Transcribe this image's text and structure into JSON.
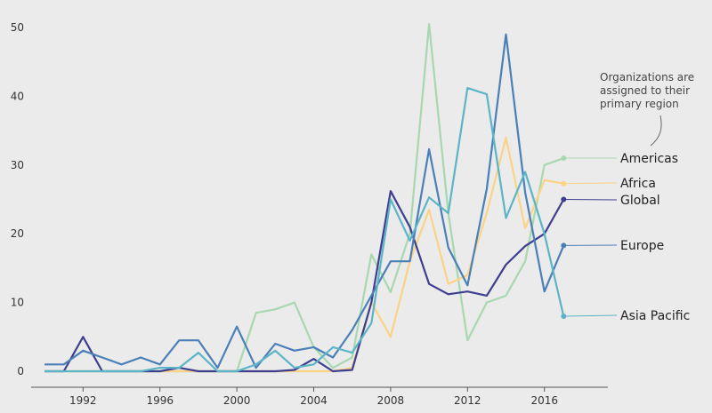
{
  "chart_data": {
    "type": "line",
    "title": "",
    "xlabel": "",
    "ylabel": "",
    "xlim": [
      1989.3,
      2019.3
    ],
    "ylim": [
      0,
      50
    ],
    "x_ticks": [
      1992,
      1996,
      2000,
      2004,
      2008,
      2012,
      2016
    ],
    "y_ticks": [
      0,
      10,
      20,
      30,
      40,
      50
    ],
    "grid": false,
    "legend": "direct labels at right end of lines",
    "annotation": [
      "Organizations are",
      "assigned to their",
      "primary region"
    ],
    "x": [
      1990,
      1991,
      1992,
      1993,
      1994,
      1995,
      1996,
      1997,
      1998,
      1999,
      2000,
      2001,
      2002,
      2003,
      2004,
      2005,
      2006,
      2007,
      2008,
      2009,
      2010,
      2011,
      2012,
      2013,
      2014,
      2015,
      2016,
      2017
    ],
    "series": [
      {
        "name": "Americas",
        "color": "#a8d8b0",
        "values": [
          0,
          0,
          0,
          0,
          0,
          0,
          0,
          0,
          0,
          0,
          0,
          8.5,
          9,
          10,
          3.5,
          0.5,
          2,
          17,
          11.5,
          20,
          50.5,
          23,
          4.5,
          10,
          11,
          16,
          30,
          31
        ]
      },
      {
        "name": "Africa",
        "color": "#fcd385",
        "values": [
          0,
          0,
          0,
          0,
          0,
          0,
          0,
          0,
          0,
          0,
          0,
          0,
          0,
          0,
          0,
          0,
          0.5,
          10,
          5,
          16,
          23.5,
          12.7,
          14,
          23,
          34,
          20.8,
          27.8,
          27.3
        ]
      },
      {
        "name": "Global",
        "color": "#3d3e8f",
        "values": [
          0,
          0,
          5,
          0,
          0,
          0,
          0,
          0.5,
          0,
          0,
          0,
          0,
          0,
          0.2,
          1.8,
          0,
          0.2,
          10,
          26.2,
          21,
          12.7,
          11.2,
          11.6,
          11,
          15.5,
          18.2,
          20,
          25
        ]
      },
      {
        "name": "Europe",
        "color": "#4a7fb8",
        "values": [
          1,
          1,
          3,
          2,
          1,
          2,
          1,
          4.5,
          4.5,
          0.5,
          6.5,
          0.5,
          4,
          3,
          3.5,
          2,
          6,
          11,
          16,
          16,
          32.3,
          18,
          12.5,
          26.5,
          49,
          26,
          11.6,
          18.3
        ]
      },
      {
        "name": "Asia Pacific",
        "color": "#5bb5c6",
        "values": [
          0,
          0,
          0,
          0,
          0,
          0,
          0.5,
          0.5,
          2.7,
          0,
          0,
          1,
          3,
          0.5,
          1,
          3.5,
          2.7,
          7,
          25,
          19,
          25.3,
          23,
          41.2,
          40.3,
          22.3,
          29,
          20,
          8
        ]
      }
    ]
  }
}
